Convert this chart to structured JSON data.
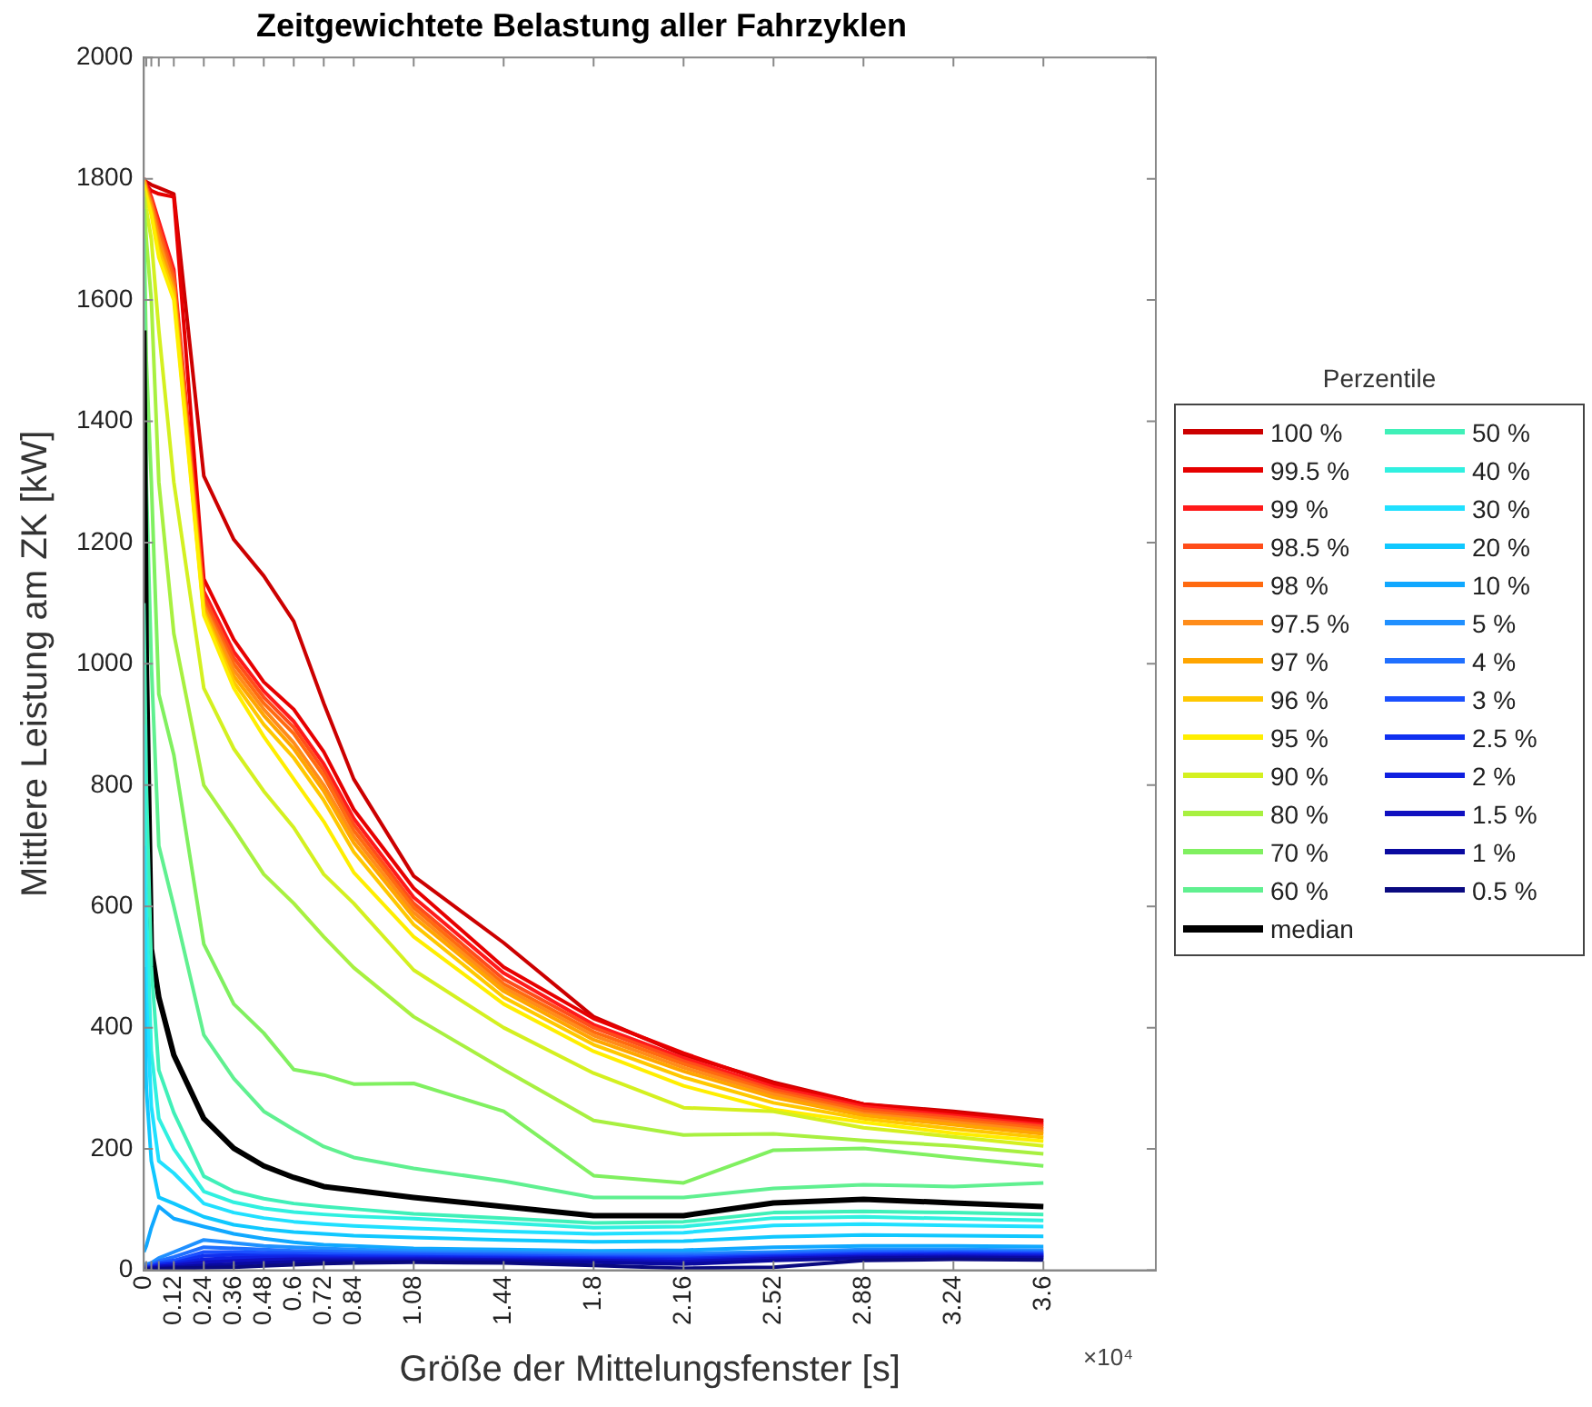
{
  "chart_data": {
    "type": "line",
    "title": "Zeitgewichtete Belastung aller Fahrzyklen",
    "xlabel": "Größe der Mittelungsfenster [s]",
    "ylabel": "Mittlere Leistung am ZK [kW]",
    "legend_title": "Perzentile",
    "legend": "right",
    "grid": false,
    "marker": "none",
    "line_style": "solid",
    "annotations": [
      "×10⁴"
    ],
    "x": [
      0,
      0.01,
      0.03,
      0.06,
      0.12,
      0.24,
      0.36,
      0.48,
      0.6,
      0.72,
      0.84,
      1.08,
      1.44,
      1.8,
      2.16,
      2.52,
      2.88,
      3.24,
      3.6
    ],
    "xlim": [
      0,
      4.05
    ],
    "xticks": [
      0,
      {
        "value": 0.01,
        "label": null
      },
      {
        "value": 0.03,
        "label": null
      },
      {
        "value": 0.06,
        "label": null
      },
      0.12,
      0.24,
      0.36,
      0.48,
      0.6,
      0.72,
      0.84,
      1.08,
      1.44,
      1.8,
      2.16,
      2.52,
      2.88,
      3.24,
      3.6
    ],
    "ylim": [
      0,
      2000
    ],
    "yticks": [
      0,
      200,
      400,
      600,
      800,
      1000,
      1200,
      1400,
      1600,
      1800,
      2000
    ],
    "series": [
      {
        "name": "100 %",
        "color": "#cc0000",
        "values": [
          1800,
          1795,
          1790,
          1785,
          1775,
          1310,
          1205,
          1145,
          1070,
          935,
          810,
          650,
          540,
          418,
          355,
          310,
          274,
          262,
          247
        ]
      },
      {
        "name": "99.5 %",
        "color": "#e60000",
        "values": [
          1800,
          1790,
          1780,
          1775,
          1770,
          1140,
          1040,
          970,
          925,
          855,
          760,
          630,
          500,
          415,
          358,
          307,
          274,
          259,
          244
        ]
      },
      {
        "name": "99 %",
        "color": "#ff1a1a",
        "values": [
          1800,
          1790,
          1770,
          1730,
          1650,
          1120,
          1020,
          955,
          905,
          835,
          745,
          615,
          490,
          405,
          350,
          302,
          270,
          255,
          240
        ]
      },
      {
        "name": "98.5 %",
        "color": "#ff4d1a",
        "values": [
          1800,
          1785,
          1765,
          1720,
          1640,
          1110,
          1010,
          945,
          895,
          825,
          735,
          605,
          480,
          400,
          345,
          298,
          266,
          252,
          237
        ]
      },
      {
        "name": "98 %",
        "color": "#ff6a10",
        "values": [
          1800,
          1785,
          1760,
          1710,
          1630,
          1100,
          1000,
          935,
          885,
          815,
          725,
          598,
          472,
          393,
          340,
          294,
          262,
          248,
          233
        ]
      },
      {
        "name": "97.5 %",
        "color": "#ff8c1a",
        "values": [
          1800,
          1780,
          1755,
          1700,
          1620,
          1095,
          990,
          925,
          870,
          800,
          715,
          590,
          466,
          387,
          334,
          290,
          258,
          244,
          229
        ]
      },
      {
        "name": "97 %",
        "color": "#ffa500",
        "values": [
          1795,
          1780,
          1750,
          1690,
          1615,
          1090,
          980,
          915,
          860,
          790,
          705,
          582,
          460,
          380,
          328,
          285,
          255,
          240,
          225
        ]
      },
      {
        "name": "96 %",
        "color": "#ffc800",
        "values": [
          1795,
          1775,
          1745,
          1680,
          1610,
          1085,
          970,
          900,
          845,
          775,
          690,
          570,
          450,
          372,
          318,
          276,
          250,
          233,
          219
        ]
      },
      {
        "name": "95 %",
        "color": "#ffee00",
        "values": [
          1790,
          1770,
          1740,
          1670,
          1600,
          1080,
          960,
          880,
          810,
          740,
          656,
          550,
          439,
          361,
          304,
          265,
          244,
          226,
          213
        ]
      },
      {
        "name": "90 %",
        "color": "#d4f020",
        "values": [
          1780,
          1750,
          1700,
          1550,
          1300,
          960,
          860,
          790,
          730,
          653,
          605,
          495,
          400,
          325,
          268,
          262,
          235,
          220,
          205
        ]
      },
      {
        "name": "80 %",
        "color": "#a8f040",
        "values": [
          1770,
          1700,
          1600,
          1300,
          1050,
          800,
          728,
          653,
          605,
          550,
          499,
          418,
          331,
          247,
          223,
          225,
          214,
          205,
          192
        ]
      },
      {
        "name": "70 %",
        "color": "#80f060",
        "values": [
          1750,
          1500,
          1300,
          950,
          850,
          538,
          439,
          391,
          331,
          322,
          307,
          308,
          262,
          156,
          144,
          198,
          201,
          186,
          172
        ]
      },
      {
        "name": "60 %",
        "color": "#60f090",
        "values": [
          1700,
          1300,
          1000,
          700,
          600,
          388,
          316,
          262,
          232,
          204,
          186,
          168,
          147,
          120,
          120,
          135,
          141,
          138,
          144
        ]
      },
      {
        "name": "median",
        "color": "#000000",
        "values": [
          1550,
          1000,
          530,
          450,
          355,
          250,
          201,
          172,
          153,
          138,
          132,
          120,
          105,
          90,
          90,
          111,
          117,
          111,
          105
        ]
      },
      {
        "name": "50 %",
        "color": "#40f0b8",
        "values": [
          1100,
          800,
          500,
          330,
          260,
          155,
          130,
          118,
          110,
          105,
          101,
          93,
          86,
          78,
          80,
          95,
          97,
          95,
          92
        ]
      },
      {
        "name": "40 %",
        "color": "#30f0e0",
        "values": [
          900,
          600,
          360,
          250,
          200,
          130,
          112,
          102,
          96,
          92,
          89,
          85,
          78,
          70,
          72,
          86,
          88,
          85,
          82
        ]
      },
      {
        "name": "30 %",
        "color": "#20e0ff",
        "values": [
          700,
          450,
          270,
          180,
          160,
          110,
          95,
          86,
          80,
          76,
          73,
          69,
          64,
          60,
          62,
          74,
          76,
          74,
          72
        ]
      },
      {
        "name": "20 %",
        "color": "#10c8ff",
        "values": [
          500,
          300,
          180,
          120,
          110,
          88,
          75,
          68,
          63,
          60,
          57,
          54,
          50,
          47,
          48,
          55,
          58,
          57,
          56
        ]
      },
      {
        "name": "10 %",
        "color": "#10a8ff",
        "values": [
          30,
          40,
          70,
          105,
          85,
          72,
          60,
          52,
          46,
          42,
          40,
          36,
          34,
          32,
          33,
          38,
          40,
          40,
          39
        ]
      },
      {
        "name": "5 %",
        "color": "#2090ff",
        "values": [
          10,
          10,
          12,
          20,
          30,
          50,
          45,
          40,
          38,
          36,
          34,
          32,
          30,
          28,
          28,
          30,
          34,
          34,
          33
        ]
      },
      {
        "name": "4 %",
        "color": "#2070ff",
        "values": [
          8,
          8,
          10,
          15,
          22,
          38,
          36,
          34,
          32,
          31,
          30,
          28,
          27,
          25,
          25,
          28,
          31,
          31,
          30
        ]
      },
      {
        "name": "3 %",
        "color": "#1a50ff",
        "values": [
          6,
          6,
          8,
          12,
          16,
          30,
          30,
          29,
          28,
          27,
          26,
          25,
          24,
          22,
          22,
          25,
          28,
          29,
          28
        ]
      },
      {
        "name": "2.5 %",
        "color": "#1030f0",
        "values": [
          5,
          5,
          6,
          10,
          12,
          24,
          25,
          24,
          24,
          23,
          23,
          22,
          21,
          20,
          19,
          23,
          26,
          27,
          26
        ]
      },
      {
        "name": "2 %",
        "color": "#1020e0",
        "values": [
          4,
          4,
          5,
          8,
          10,
          18,
          20,
          21,
          21,
          21,
          20,
          20,
          19,
          18,
          17,
          21,
          24,
          25,
          24
        ]
      },
      {
        "name": "1.5 %",
        "color": "#1010c0",
        "values": [
          3,
          3,
          4,
          6,
          8,
          13,
          15,
          17,
          18,
          18,
          18,
          18,
          17,
          16,
          14,
          19,
          22,
          23,
          22
        ]
      },
      {
        "name": "1 %",
        "color": "#0a0aa0",
        "values": [
          2,
          2,
          3,
          4,
          5,
          8,
          10,
          12,
          14,
          15,
          15,
          15,
          15,
          13,
          10,
          16,
          20,
          21,
          20
        ]
      },
      {
        "name": "0.5 %",
        "color": "#0a0a80",
        "values": [
          1,
          1,
          1,
          2,
          3,
          4,
          5,
          7,
          9,
          11,
          12,
          13,
          12,
          8,
          3,
          5,
          16,
          18,
          17
        ]
      }
    ]
  }
}
